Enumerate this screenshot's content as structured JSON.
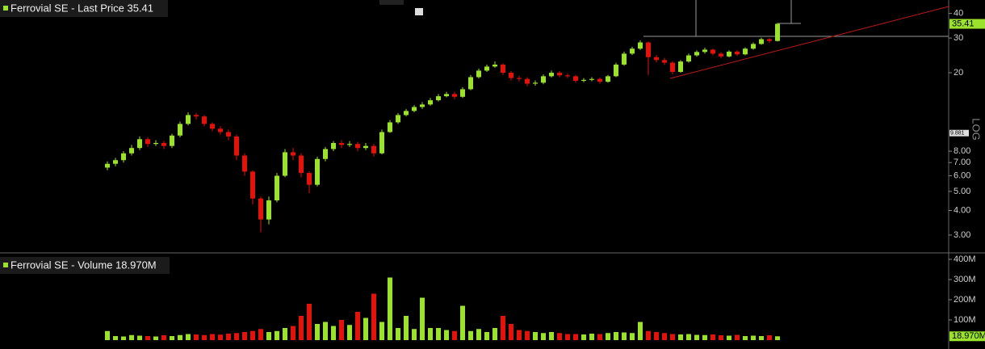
{
  "chart_data": [
    {
      "type": "candlestick",
      "legend": "Ferrovial SE - Last Price 35.41",
      "up_color": "#9be22d",
      "down_color": "#e3120b",
      "open": [
        6.6,
        6.9,
        7.2,
        7.8,
        8.3,
        9.2,
        8.7,
        8.8,
        8.5,
        9.6,
        11.0,
        12.2,
        12.0,
        11.0,
        10.4,
        10.0,
        9.5,
        7.6,
        6.3,
        4.6,
        3.6,
        4.5,
        6.0,
        7.9,
        7.6,
        6.2,
        5.4,
        7.3,
        8.2,
        8.8,
        8.6,
        8.7,
        8.3,
        8.5,
        7.8,
        10.0,
        11.2,
        12.2,
        12.8,
        13.4,
        13.8,
        14.5,
        15.2,
        15.6,
        15.1,
        16.5,
        19.0,
        20.5,
        21.5,
        22.0,
        20.0,
        18.8,
        18.6,
        17.6,
        17.8,
        19.2,
        20.0,
        19.4,
        19.2,
        18.2,
        18.4,
        18.6,
        18.0,
        19.2,
        22.0,
        25.0,
        26.5,
        28.5,
        24.0,
        23.2,
        22.5,
        20.2,
        22.8,
        24.5,
        25.5,
        26.2,
        25.0,
        24.2,
        25.6,
        24.8,
        26.5,
        28.0,
        29.6,
        29.0
      ],
      "high": [
        7.1,
        7.4,
        8.0,
        8.6,
        9.5,
        9.4,
        9.1,
        9.0,
        9.8,
        11.3,
        12.6,
        12.5,
        12.2,
        11.2,
        10.7,
        10.3,
        9.7,
        7.8,
        6.4,
        4.7,
        4.7,
        6.2,
        8.2,
        8.3,
        7.8,
        6.3,
        7.5,
        8.4,
        9.0,
        9.1,
        9.0,
        8.9,
        8.8,
        8.7,
        10.3,
        11.5,
        12.5,
        13.1,
        13.7,
        14.2,
        14.9,
        15.6,
        16.0,
        16.0,
        16.9,
        19.5,
        21.0,
        22.0,
        22.8,
        22.3,
        20.4,
        19.3,
        19.0,
        18.3,
        19.6,
        20.5,
        20.4,
        19.8,
        19.5,
        18.8,
        19.0,
        18.9,
        19.5,
        22.5,
        25.6,
        27.1,
        29.2,
        28.8,
        24.6,
        23.8,
        22.9,
        23.2,
        25.0,
        26.0,
        26.8,
        26.5,
        25.4,
        26.0,
        26.0,
        26.9,
        28.5,
        30.1,
        30.0,
        35.9
      ],
      "low": [
        6.4,
        6.7,
        7.0,
        7.6,
        8.1,
        8.4,
        8.5,
        8.2,
        8.3,
        9.4,
        10.8,
        11.6,
        10.7,
        10.1,
        9.7,
        9.1,
        7.2,
        6.0,
        4.3,
        3.1,
        3.4,
        4.4,
        5.9,
        7.2,
        5.9,
        4.9,
        5.3,
        7.1,
        8.0,
        8.3,
        8.4,
        8.0,
        8.1,
        7.5,
        7.7,
        9.9,
        11.0,
        12.0,
        12.6,
        13.1,
        13.6,
        14.3,
        15.0,
        14.7,
        14.9,
        16.3,
        18.7,
        20.2,
        21.2,
        19.5,
        18.3,
        18.1,
        17.1,
        17.2,
        17.5,
        18.9,
        19.0,
        18.8,
        17.8,
        17.9,
        18.1,
        17.6,
        17.8,
        19.0,
        21.7,
        24.6,
        26.1,
        19.5,
        22.6,
        21.9,
        19.6,
        20.0,
        22.5,
        24.1,
        25.0,
        24.5,
        23.7,
        23.9,
        24.3,
        24.5,
        26.2,
        27.7,
        28.4,
        28.8
      ],
      "close": [
        6.9,
        7.2,
        7.8,
        8.3,
        9.2,
        8.7,
        8.8,
        8.5,
        9.6,
        11.0,
        12.2,
        12.0,
        11.0,
        10.4,
        10.0,
        9.5,
        7.6,
        6.3,
        4.6,
        3.6,
        4.5,
        6.0,
        7.9,
        7.6,
        6.2,
        5.4,
        7.3,
        8.2,
        8.8,
        8.6,
        8.7,
        8.3,
        8.5,
        7.8,
        10.0,
        11.2,
        12.2,
        12.8,
        13.4,
        13.8,
        14.5,
        15.2,
        15.6,
        15.1,
        16.5,
        19.0,
        20.5,
        21.5,
        22.0,
        20.0,
        18.8,
        18.6,
        17.6,
        17.8,
        19.2,
        20.0,
        19.4,
        19.2,
        18.2,
        18.4,
        18.6,
        18.0,
        19.2,
        22.0,
        25.0,
        26.5,
        28.5,
        24.0,
        23.2,
        22.5,
        20.2,
        22.8,
        24.5,
        25.5,
        26.2,
        25.0,
        24.2,
        25.6,
        24.8,
        26.5,
        28.0,
        29.6,
        29.0,
        35.41
      ],
      "log_scale": true,
      "scale_label": "LOG",
      "ylim": [
        2.46,
        46.8
      ],
      "yticks": [
        {
          "value": 3,
          "label": "3.00"
        },
        {
          "value": 4,
          "label": "4.00"
        },
        {
          "value": 5,
          "label": "5.00"
        },
        {
          "value": 6,
          "label": "6.00"
        },
        {
          "value": 7,
          "label": "7.00"
        },
        {
          "value": 8,
          "label": "8.00"
        },
        20,
        30,
        40
      ],
      "last_label": {
        "value": 35.41,
        "label": "35.41"
      },
      "marker_label": {
        "value": 9.881,
        "label": "9.881"
      }
    },
    {
      "type": "bar",
      "legend": "Ferrovial SE - Volume 18.970M",
      "values": [
        45,
        20,
        18,
        25,
        22,
        20,
        18,
        24,
        20,
        25,
        30,
        28,
        25,
        30,
        27,
        32,
        35,
        40,
        45,
        55,
        40,
        45,
        60,
        70,
        120,
        180,
        80,
        90,
        70,
        100,
        75,
        140,
        110,
        230,
        90,
        310,
        60,
        120,
        55,
        210,
        60,
        60,
        50,
        45,
        170,
        45,
        55,
        40,
        60,
        120,
        80,
        50,
        45,
        40,
        35,
        40,
        35,
        30,
        30,
        28,
        32,
        30,
        35,
        40,
        38,
        35,
        90,
        45,
        40,
        35,
        30,
        28,
        30,
        26,
        25,
        28,
        24,
        22,
        26,
        20,
        22,
        20,
        24,
        18.97
      ],
      "ylim": [
        0,
        428
      ],
      "yticks": [
        {
          "value": 100,
          "label": "100M"
        },
        {
          "value": 200,
          "label": "200M"
        },
        {
          "value": 300,
          "label": "300M"
        },
        {
          "value": 400,
          "label": "400M"
        }
      ],
      "last_label": {
        "value": 18.97,
        "label": "18.970M"
      }
    }
  ]
}
